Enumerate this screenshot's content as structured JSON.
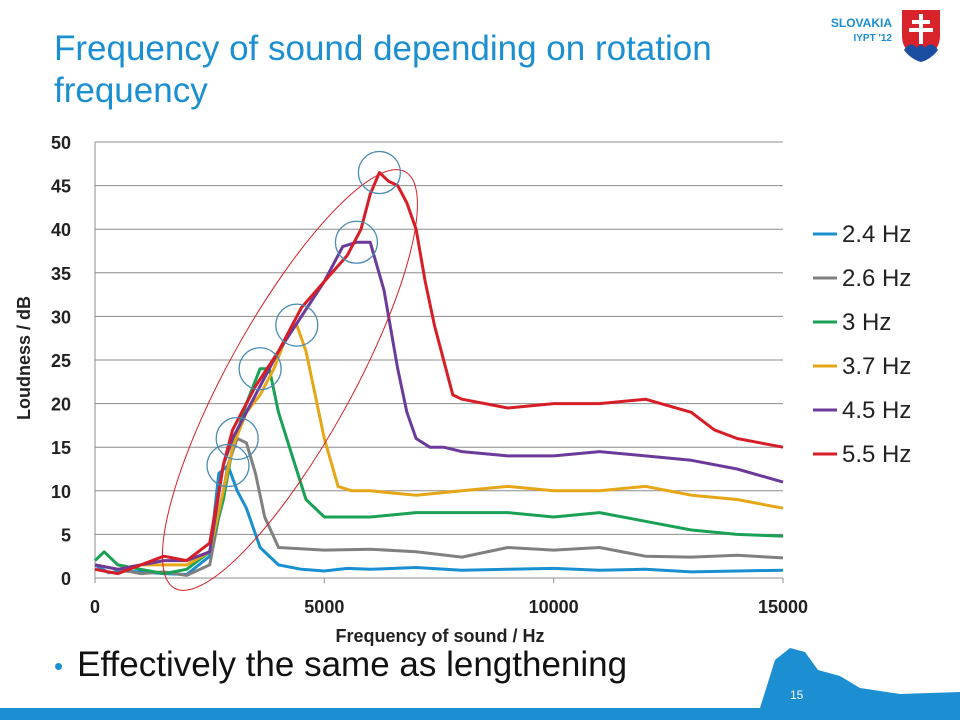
{
  "slide": {
    "title": "Frequency of sound depending on rotation frequency",
    "badge_country": "SLOVAKIA",
    "badge_event": "IYPT '12",
    "bullet": "Effectively the same as lengthening",
    "page_number": "15",
    "accent_color": "#1b8fd2"
  },
  "chart_data": {
    "type": "line",
    "title": "",
    "xlabel": "Frequency of sound / Hz",
    "ylabel": "Loudness / dB",
    "xlim": [
      0,
      15000
    ],
    "ylim": [
      0,
      50
    ],
    "xticks": [
      0,
      5000,
      10000,
      15000
    ],
    "yticks": [
      0,
      5,
      10,
      15,
      20,
      25,
      30,
      35,
      40,
      45,
      50
    ],
    "grid": "horizontal",
    "legend_position": "right",
    "series": [
      {
        "name": "2.4 Hz",
        "color": "#1a8fd0",
        "x": [
          0,
          300,
          600,
          1000,
          1500,
          2000,
          2500,
          2700,
          2900,
          3100,
          3300,
          3600,
          4000,
          4500,
          5000,
          5500,
          6000,
          7000,
          8000,
          9000,
          10000,
          11000,
          12000,
          13000,
          14000,
          15000
        ],
        "y": [
          1.5,
          0.6,
          0.8,
          0.7,
          0.5,
          0.4,
          2.5,
          12,
          12.9,
          10,
          8,
          3.5,
          1.5,
          1,
          0.8,
          1.1,
          1,
          1.2,
          0.9,
          1,
          1.1,
          0.9,
          1,
          0.7,
          0.8,
          0.9
        ]
      },
      {
        "name": "2.6 Hz",
        "color": "#808080",
        "x": [
          0,
          500,
          1000,
          1500,
          2000,
          2500,
          2700,
          2900,
          3100,
          3300,
          3500,
          3700,
          4000,
          5000,
          6000,
          7000,
          8000,
          9000,
          10000,
          11000,
          12000,
          13000,
          14000,
          15000
        ],
        "y": [
          1.5,
          1,
          0.5,
          0.7,
          0.3,
          1.5,
          7,
          13,
          16,
          15.5,
          12,
          7,
          3.5,
          3.2,
          3.3,
          3,
          2.4,
          3.5,
          3.2,
          3.5,
          2.5,
          2.4,
          2.6,
          2.3
        ]
      },
      {
        "name": "3 Hz",
        "color": "#1aa155",
        "x": [
          0,
          200,
          500,
          1000,
          1500,
          2000,
          2500,
          2800,
          3000,
          3300,
          3600,
          3800,
          4000,
          4300,
          4600,
          5000,
          5500,
          6000,
          7000,
          8000,
          9000,
          10000,
          11000,
          12000,
          13000,
          14000,
          15000
        ],
        "y": [
          2,
          3,
          1.5,
          1,
          0.5,
          1,
          3,
          9,
          15,
          20,
          24,
          24,
          19,
          14,
          9,
          7,
          7,
          7,
          7.5,
          7.5,
          7.5,
          7,
          7.5,
          6.5,
          5.5,
          5,
          4.8
        ]
      },
      {
        "name": "3.7 Hz",
        "color": "#e6a616",
        "x": [
          0,
          500,
          1000,
          1500,
          2000,
          2500,
          2800,
          3000,
          3300,
          3600,
          3900,
          4200,
          4400,
          4600,
          4800,
          5000,
          5300,
          5600,
          6000,
          7000,
          8000,
          9000,
          10000,
          11000,
          12000,
          13000,
          14000,
          15000
        ],
        "y": [
          1.5,
          1,
          1.5,
          1.5,
          1.5,
          3,
          10,
          15,
          19,
          21,
          24,
          28,
          29,
          26,
          21,
          16,
          10.5,
          10,
          10,
          9.5,
          10,
          10.5,
          10,
          10,
          10.5,
          9.5,
          9,
          8
        ]
      },
      {
        "name": "4.5 Hz",
        "color": "#6b3a9a",
        "x": [
          0,
          500,
          1000,
          1500,
          2000,
          2500,
          2800,
          3000,
          3500,
          4000,
          4500,
          5000,
          5400,
          5700,
          6000,
          6300,
          6600,
          6800,
          7000,
          7300,
          7600,
          8000,
          9000,
          10000,
          11000,
          12000,
          13000,
          14000,
          15000
        ],
        "y": [
          1.5,
          1,
          1.5,
          2,
          2,
          3,
          13,
          16,
          21,
          26,
          30,
          34,
          38,
          38.5,
          38.5,
          33,
          24,
          19,
          16,
          15,
          15,
          14.5,
          14,
          14,
          14.5,
          14,
          13.5,
          12.5,
          11
        ]
      },
      {
        "name": "5.5 Hz",
        "color": "#d71e27",
        "x": [
          0,
          500,
          1000,
          1500,
          2000,
          2500,
          2800,
          3000,
          3500,
          4000,
          4500,
          5000,
          5500,
          5800,
          6000,
          6200,
          6400,
          6600,
          6800,
          7000,
          7200,
          7400,
          7600,
          7800,
          8000,
          9000,
          10000,
          11000,
          12000,
          13000,
          13500,
          14000,
          15000
        ],
        "y": [
          1,
          0.5,
          1.5,
          2.5,
          2,
          4,
          13,
          17,
          22,
          26,
          31,
          34,
          37,
          40,
          44,
          46.5,
          45.5,
          45,
          43,
          40,
          34,
          29,
          25,
          21,
          20.5,
          19.5,
          20,
          20,
          20.5,
          19,
          17,
          16,
          15
        ]
      }
    ],
    "annotations": [
      "ellipse around peak envelope",
      "circles at peak of each series"
    ]
  }
}
